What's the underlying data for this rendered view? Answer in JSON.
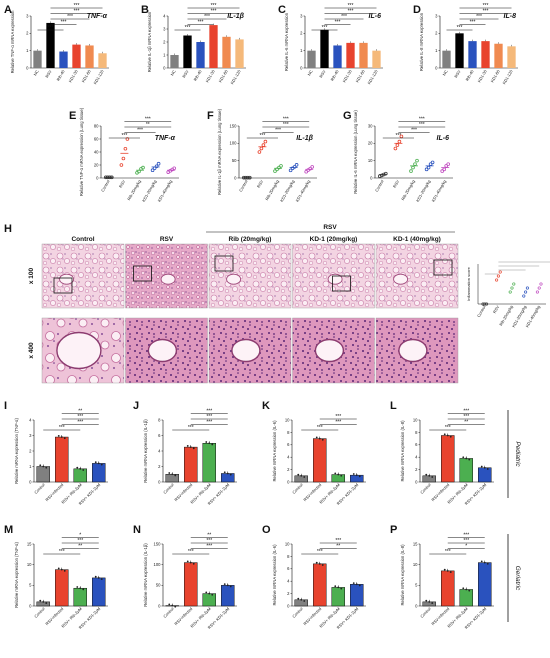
{
  "panelA": {
    "letter": "A",
    "title": "TNF-α",
    "ylabel": "Relative TNF-α mRNA expression",
    "categories": [
      "NC",
      "RSV",
      "Rib-40",
      "KD1-30",
      "KD1-60",
      "KD1-120"
    ],
    "values": [
      1.0,
      2.6,
      0.95,
      1.35,
      1.3,
      0.85
    ],
    "ymax": 3,
    "ticks": [
      "0",
      "1",
      "2",
      "3"
    ],
    "colors": [
      "#808080",
      "#000000",
      "#2a52be",
      "#e8432e",
      "#f08a50",
      "#f5b97a"
    ],
    "sigs": [
      "***",
      "***",
      "***",
      "***",
      "***"
    ]
  },
  "panelB": {
    "letter": "B",
    "title": "IL-1β",
    "ylabel": "Relative IL-1β mRNA expression",
    "categories": [
      "NC",
      "RSV",
      "Rib-40",
      "KD1-30",
      "KD1-60",
      "KD1-120"
    ],
    "values": [
      1.0,
      2.5,
      2.0,
      3.3,
      2.4,
      2.2
    ],
    "ymax": 4,
    "ticks": [
      "0",
      "1",
      "2",
      "3",
      "4"
    ],
    "colors": [
      "#808080",
      "#000000",
      "#2a52be",
      "#e8432e",
      "#f08a50",
      "#f5b97a"
    ],
    "sigs": [
      "***",
      "***",
      "***",
      "***",
      "***"
    ]
  },
  "panelC": {
    "letter": "C",
    "title": "IL-6",
    "ylabel": "Relative IL-6 mRNA expression",
    "categories": [
      "NC",
      "RSV",
      "Rib-40",
      "KD1-30",
      "KD1-60",
      "KD1-120"
    ],
    "values": [
      1.0,
      2.2,
      1.3,
      1.45,
      1.45,
      1.0
    ],
    "ymax": 3,
    "ticks": [
      "0",
      "1",
      "2",
      "3"
    ],
    "colors": [
      "#808080",
      "#000000",
      "#2a52be",
      "#e8432e",
      "#f08a50",
      "#f5b97a"
    ],
    "sigs": [
      "***",
      "***",
      "***",
      "***",
      "***"
    ]
  },
  "panelD": {
    "letter": "D",
    "title": "IL-8",
    "ylabel": "Relative IL-8 mRNA expression",
    "categories": [
      "NC",
      "RSV",
      "Rib-40",
      "KD1-30",
      "KD1-60",
      "KD1-120"
    ],
    "values": [
      1.0,
      2.0,
      1.55,
      1.55,
      1.4,
      1.25
    ],
    "ymax": 3,
    "ticks": [
      "0",
      "1",
      "2",
      "3"
    ],
    "colors": [
      "#808080",
      "#000000",
      "#2a52be",
      "#e8432e",
      "#f08a50",
      "#f5b97a"
    ],
    "sigs": [
      "***",
      "***",
      "***",
      "***",
      "***"
    ]
  },
  "panelE": {
    "letter": "E",
    "title": "TNF-α",
    "ylabel": "Relative TNF-α mRNA expression (Lung tissue)",
    "categories": [
      "Control",
      "RSV",
      "Rib-20mg/kg",
      "KD1-20mg/kg",
      "KD1-40mg/kg"
    ],
    "means": [
      1,
      38,
      12,
      17,
      12
    ],
    "points": [
      [
        1,
        1,
        1,
        1
      ],
      [
        20,
        30,
        45,
        60
      ],
      [
        8,
        10,
        14,
        16
      ],
      [
        12,
        15,
        18,
        22
      ],
      [
        9,
        11,
        13,
        15
      ]
    ],
    "ymax": 80,
    "ticks": [
      "0",
      "20",
      "40",
      "60",
      "80"
    ],
    "colors": [
      "#333333",
      "#e8432e",
      "#4caf50",
      "#2a52be",
      "#c04bc0"
    ],
    "sigs": [
      "***",
      "***",
      "**",
      "***"
    ]
  },
  "panelF": {
    "letter": "F",
    "title": "IL-1β",
    "ylabel": "Relative IL-1β mRNA expression (Lung tissue)",
    "categories": [
      "Control",
      "RSV",
      "Rib-20mg/kg",
      "KD1-20mg/kg",
      "KD1-40mg/kg"
    ],
    "means": [
      1,
      90,
      28,
      30,
      25
    ],
    "points": [
      [
        1,
        1,
        1,
        1
      ],
      [
        75,
        85,
        95,
        105
      ],
      [
        20,
        25,
        30,
        35
      ],
      [
        22,
        28,
        32,
        38
      ],
      [
        18,
        23,
        27,
        32
      ]
    ],
    "ymax": 150,
    "ticks": [
      "0",
      "50",
      "100",
      "150"
    ],
    "colors": [
      "#333333",
      "#e8432e",
      "#4caf50",
      "#2a52be",
      "#c04bc0"
    ],
    "sigs": [
      "***",
      "***",
      "***",
      "***"
    ]
  },
  "panelG": {
    "letter": "G",
    "title": "IL-6",
    "ylabel": "Relative IL-6 mRNA expression (Lung tissue)",
    "categories": [
      "Control",
      "RSV",
      "Rib-20mg/kg",
      "KD1-20mg/kg",
      "KD1-40mg/kg"
    ],
    "means": [
      2,
      20,
      7,
      7,
      6
    ],
    "points": [
      [
        1,
        1.5,
        2,
        2.5
      ],
      [
        17,
        19,
        21,
        24
      ],
      [
        4,
        6,
        8,
        10
      ],
      [
        5,
        6,
        8,
        9
      ],
      [
        4,
        5,
        7,
        8
      ]
    ],
    "ymax": 30,
    "ticks": [
      "0",
      "10",
      "20",
      "30"
    ],
    "colors": [
      "#333333",
      "#e8432e",
      "#4caf50",
      "#2a52be",
      "#c04bc0"
    ],
    "sigs": [
      "***",
      "***",
      "***",
      "***"
    ]
  },
  "panelH": {
    "letter": "H",
    "groupLabel": "RSV",
    "columns": [
      "Control",
      "RSV",
      "Rib (20mg/kg)",
      "KD-1 (20mg/kg)",
      "KD-1 (40mg/kg)"
    ],
    "rowLabels": [
      "x 100",
      "x 400"
    ],
    "inset": {
      "ylabel": "Inflammation score",
      "categories": [
        "Control",
        "RSV",
        "Rib-20mg/kg",
        "KD1-20mg/kg",
        "KD1-40mg/kg"
      ],
      "points": [
        [
          0,
          0,
          0
        ],
        [
          3,
          3.5,
          4
        ],
        [
          1.5,
          2,
          2.5
        ],
        [
          1,
          1.5,
          2
        ],
        [
          1.5,
          2,
          2.5
        ]
      ],
      "ymax": 5,
      "colors": [
        "#333333",
        "#e8432e",
        "#4caf50",
        "#2a52be",
        "#c04bc0"
      ]
    }
  },
  "panelI": {
    "letter": "I",
    "ylabel": "Relative mRNA expression (TNF-α)",
    "categories": [
      "Control",
      "RSV-infected",
      "RSV+ Rib-2μM",
      "RSV+ KD1-2μM"
    ],
    "values": [
      1.0,
      2.9,
      0.85,
      1.2
    ],
    "ymax": 4,
    "ticks": [
      "0",
      "1",
      "2",
      "3",
      "4"
    ],
    "sigs": [
      "***",
      "***",
      "***",
      "**"
    ]
  },
  "panelJ": {
    "letter": "J",
    "ylabel": "Relative mRNA expression (IL-1β)",
    "categories": [
      "Control",
      "RSV-infected",
      "RSV+ Rib-2μM",
      "RSV+ KD1-2μM"
    ],
    "values": [
      1.0,
      4.5,
      5.0,
      1.1
    ],
    "ymax": 8,
    "ticks": [
      "0",
      "2",
      "4",
      "6",
      "8"
    ],
    "sigs": [
      "***",
      "***",
      "***",
      "***"
    ]
  },
  "panelK": {
    "letter": "K",
    "ylabel": "Relative mRNA expression (IL-6)",
    "categories": [
      "Control",
      "RSV-infected",
      "RSV+ Rib-2μM",
      "RSV+ KD1-2μM"
    ],
    "values": [
      1.0,
      7.0,
      1.2,
      1.1
    ],
    "ymax": 10,
    "ticks": [
      "0",
      "2",
      "4",
      "6",
      "8",
      "10"
    ],
    "sigs": [
      "***",
      "***",
      "***"
    ]
  },
  "panelL": {
    "letter": "L",
    "ylabel": "Relative mRNA expression (IL-8)",
    "categories": [
      "Control",
      "RSV-infected",
      "RSV+ Rib-2μM",
      "RSV+ KD1-2μM"
    ],
    "values": [
      1.0,
      7.5,
      3.8,
      2.3
    ],
    "ymax": 10,
    "ticks": [
      "0",
      "2",
      "4",
      "6",
      "8",
      "10"
    ],
    "sigs": [
      "***",
      "**",
      "***",
      "***"
    ],
    "sideLabel": "Pediatric"
  },
  "panelM": {
    "letter": "M",
    "ylabel": "Relative mRNA expression (TNF-α)",
    "categories": [
      "Control",
      "RSV-infected",
      "RSV+ Rib-2μM",
      "RSV+ KD1-2μM"
    ],
    "values": [
      1.0,
      8.8,
      4.3,
      6.8
    ],
    "ymax": 15,
    "ticks": [
      "0",
      "5",
      "10",
      "15"
    ],
    "sigs": [
      "***",
      "**",
      "***",
      "*"
    ]
  },
  "panelN": {
    "letter": "N",
    "ylabel": "Relative mRNA expression (IL-1β)",
    "categories": [
      "Control",
      "RSV-infected",
      "RSV+ Rib-2μM",
      "RSV+ KD1-2μM"
    ],
    "values": [
      1.0,
      105,
      30,
      50
    ],
    "ymax": 150,
    "ticks": [
      "0",
      "50",
      "100",
      "150"
    ],
    "sigs": [
      "***",
      "***",
      "***",
      "**"
    ]
  },
  "panelO": {
    "letter": "O",
    "ylabel": "Relative mRNA expression (IL-6)",
    "categories": [
      "Control",
      "RSV-infected",
      "RSV+ Rib-2μM",
      "RSV+ KD1-2μM"
    ],
    "values": [
      1.0,
      6.8,
      3.0,
      3.5
    ],
    "ymax": 10,
    "ticks": [
      "0",
      "2",
      "4",
      "6",
      "8",
      "10"
    ],
    "sigs": [
      "***",
      "**",
      "***"
    ]
  },
  "panelP": {
    "letter": "P",
    "ylabel": "Relative mRNA expression (IL-8)",
    "categories": [
      "Control",
      "RSV-infected",
      "RSV+ Rib-2μM",
      "RSV+ KD1-2μM"
    ],
    "values": [
      1.0,
      8.5,
      4.0,
      10.5
    ],
    "ymax": 15,
    "ticks": [
      "0",
      "5",
      "10",
      "15"
    ],
    "sigs": [
      "***",
      "*",
      "***",
      "***"
    ],
    "sideLabel": "Geriatric"
  },
  "ijColors": [
    "#808080",
    "#e8432e",
    "#4caf50",
    "#2a52be"
  ],
  "chart_data": [
    {
      "type": "bar",
      "categories": [
        "NC",
        "RSV",
        "Rib-40",
        "KD1-30",
        "KD1-60",
        "KD1-120"
      ],
      "values": [
        1.0,
        2.6,
        0.95,
        1.35,
        1.3,
        0.85
      ],
      "title": "TNF-α",
      "ylabel": "Relative TNF-α mRNA expression",
      "ylim": [
        0,
        3
      ]
    },
    {
      "type": "bar",
      "categories": [
        "NC",
        "RSV",
        "Rib-40",
        "KD1-30",
        "KD1-60",
        "KD1-120"
      ],
      "values": [
        1.0,
        2.5,
        2.0,
        3.3,
        2.4,
        2.2
      ],
      "title": "IL-1β",
      "ylabel": "Relative IL-1β mRNA expression",
      "ylim": [
        0,
        4
      ]
    },
    {
      "type": "bar",
      "categories": [
        "NC",
        "RSV",
        "Rib-40",
        "KD1-30",
        "KD1-60",
        "KD1-120"
      ],
      "values": [
        1.0,
        2.2,
        1.3,
        1.45,
        1.45,
        1.0
      ],
      "title": "IL-6",
      "ylabel": "Relative IL-6 mRNA expression",
      "ylim": [
        0,
        3
      ]
    },
    {
      "type": "bar",
      "categories": [
        "NC",
        "RSV",
        "Rib-40",
        "KD1-30",
        "KD1-60",
        "KD1-120"
      ],
      "values": [
        1.0,
        2.0,
        1.55,
        1.55,
        1.4,
        1.25
      ],
      "title": "IL-8",
      "ylabel": "Relative IL-8 mRNA expression",
      "ylim": [
        0,
        3
      ]
    },
    {
      "type": "scatter",
      "categories": [
        "Control",
        "RSV",
        "Rib-20mg/kg",
        "KD1-20mg/kg",
        "KD1-40mg/kg"
      ],
      "values": [
        1,
        38,
        12,
        17,
        12
      ],
      "title": "TNF-α",
      "ylabel": "Relative TNF-α mRNA expression (Lung tissue)",
      "ylim": [
        0,
        80
      ]
    },
    {
      "type": "scatter",
      "categories": [
        "Control",
        "RSV",
        "Rib-20mg/kg",
        "KD1-20mg/kg",
        "KD1-40mg/kg"
      ],
      "values": [
        1,
        90,
        28,
        30,
        25
      ],
      "title": "IL-1β",
      "ylabel": "Relative IL-1β mRNA expression (Lung tissue)",
      "ylim": [
        0,
        150
      ]
    },
    {
      "type": "scatter",
      "categories": [
        "Control",
        "RSV",
        "Rib-20mg/kg",
        "KD1-20mg/kg",
        "KD1-40mg/kg"
      ],
      "values": [
        2,
        20,
        7,
        7,
        6
      ],
      "title": "IL-6",
      "ylabel": "Relative IL-6 mRNA expression (Lung tissue)",
      "ylim": [
        0,
        30
      ]
    },
    {
      "type": "bar",
      "categories": [
        "Control",
        "RSV-infected",
        "RSV+ Rib-2μM",
        "RSV+ KD1-2μM"
      ],
      "values": [
        1.0,
        2.9,
        0.85,
        1.2
      ],
      "ylabel": "Relative mRNA expression (TNF-α)",
      "ylim": [
        0,
        4
      ]
    },
    {
      "type": "bar",
      "categories": [
        "Control",
        "RSV-infected",
        "RSV+ Rib-2μM",
        "RSV+ KD1-2μM"
      ],
      "values": [
        1.0,
        4.5,
        5.0,
        1.1
      ],
      "ylabel": "Relative mRNA expression (IL-1β)",
      "ylim": [
        0,
        8
      ]
    },
    {
      "type": "bar",
      "categories": [
        "Control",
        "RSV-infected",
        "RSV+ Rib-2μM",
        "RSV+ KD1-2μM"
      ],
      "values": [
        1.0,
        7.0,
        1.2,
        1.1
      ],
      "ylabel": "Relative mRNA expression (IL-6)",
      "ylim": [
        0,
        10
      ]
    },
    {
      "type": "bar",
      "categories": [
        "Control",
        "RSV-infected",
        "RSV+ Rib-2μM",
        "RSV+ KD1-2μM"
      ],
      "values": [
        1.0,
        7.5,
        3.8,
        2.3
      ],
      "ylabel": "Relative mRNA expression (IL-8)",
      "ylim": [
        0,
        10
      ]
    },
    {
      "type": "bar",
      "categories": [
        "Control",
        "RSV-infected",
        "RSV+ Rib-2μM",
        "RSV+ KD1-2μM"
      ],
      "values": [
        1.0,
        8.8,
        4.3,
        6.8
      ],
      "ylabel": "Relative mRNA expression (TNF-α)",
      "ylim": [
        0,
        15
      ]
    },
    {
      "type": "bar",
      "categories": [
        "Control",
        "RSV-infected",
        "RSV+ Rib-2μM",
        "RSV+ KD1-2μM"
      ],
      "values": [
        1.0,
        105,
        30,
        50
      ],
      "ylabel": "Relative mRNA expression (IL-1β)",
      "ylim": [
        0,
        150
      ]
    },
    {
      "type": "bar",
      "categories": [
        "Control",
        "RSV-infected",
        "RSV+ Rib-2μM",
        "RSV+ KD1-2μM"
      ],
      "values": [
        1.0,
        6.8,
        3.0,
        3.5
      ],
      "ylabel": "Relative mRNA expression (IL-6)",
      "ylim": [
        0,
        10
      ]
    },
    {
      "type": "bar",
      "categories": [
        "Control",
        "RSV-infected",
        "RSV+ Rib-2μM",
        "RSV+ KD1-2μM"
      ],
      "values": [
        1.0,
        8.5,
        4.0,
        10.5
      ],
      "ylabel": "Relative mRNA expression (IL-8)",
      "ylim": [
        0,
        15
      ]
    }
  ]
}
